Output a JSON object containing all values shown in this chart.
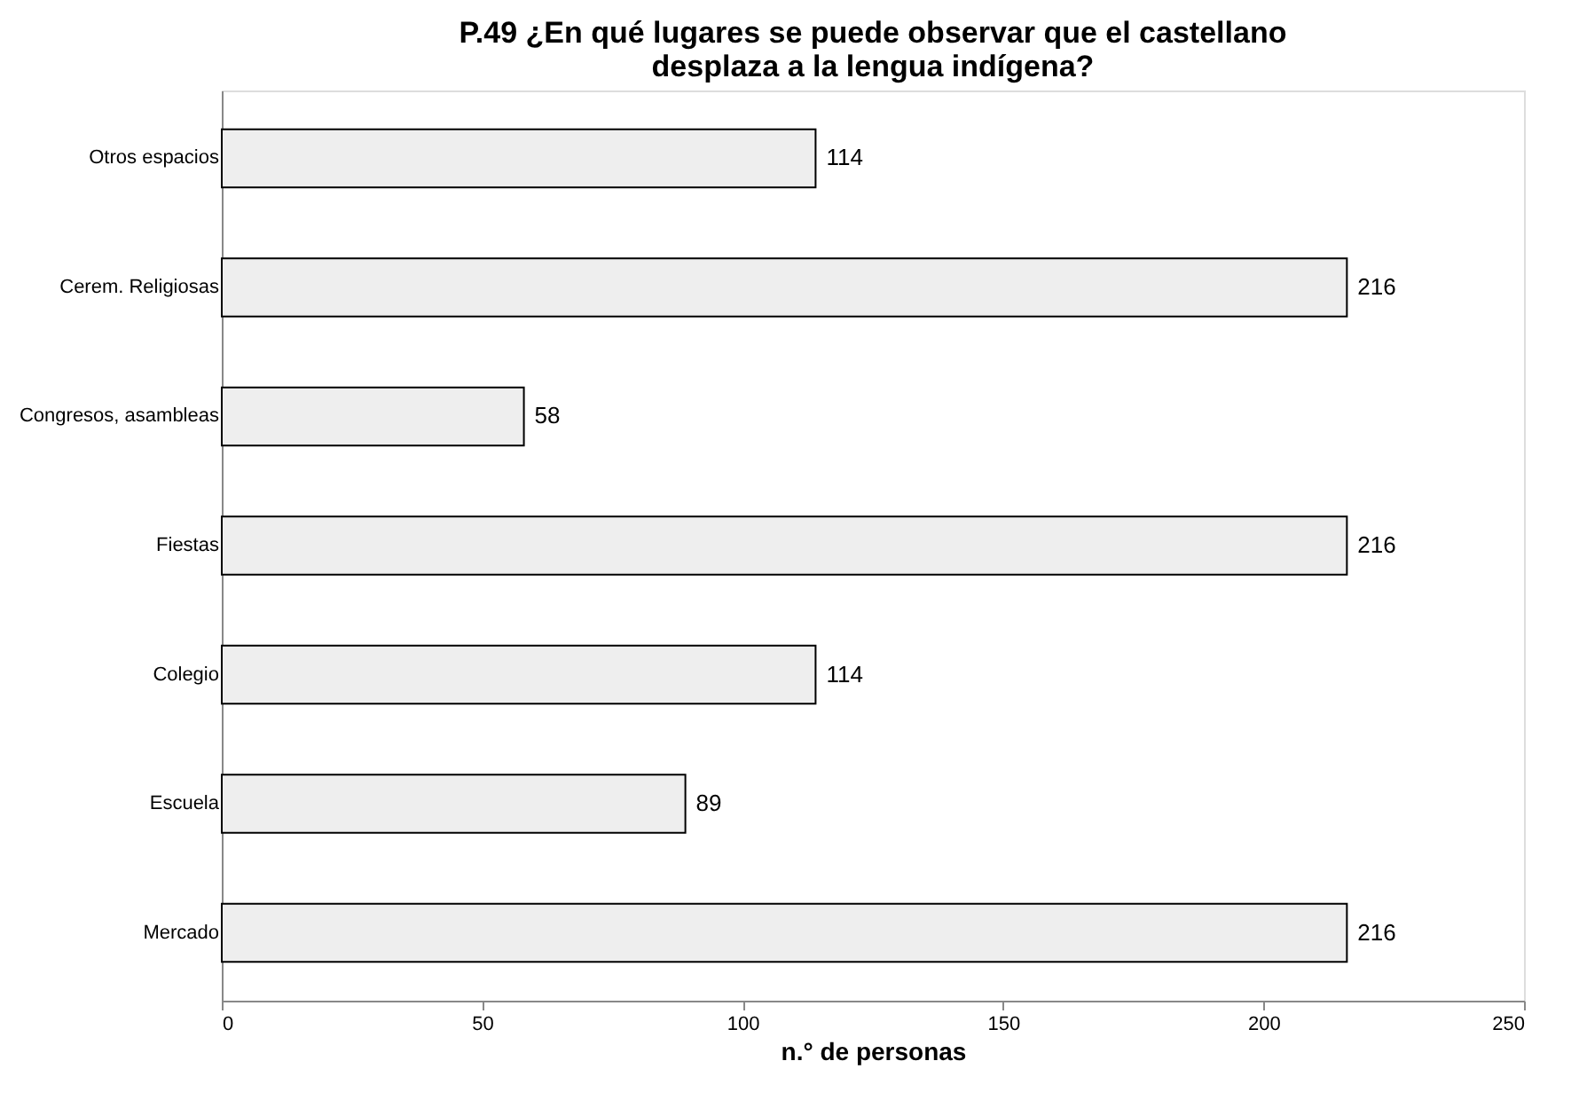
{
  "chart_data": {
    "type": "bar",
    "orientation": "horizontal",
    "title": "P.49 ¿En qué lugares se puede observar que el castellano\ndesplaza a la lengua indígena?",
    "xlabel": "n.° de personas",
    "categories": [
      "Otros espacios",
      "Cerem. Religiosas",
      "Congresos, asambleas",
      "Fiestas",
      "Colegio",
      "Escuela",
      "Mercado"
    ],
    "values": [
      114,
      216,
      58,
      216,
      114,
      89,
      216
    ],
    "color": "#eeeeee",
    "xlim": [
      0,
      250
    ],
    "xticks": [
      0,
      50,
      100,
      150,
      200,
      250
    ],
    "data_labels": true,
    "grid": false
  }
}
